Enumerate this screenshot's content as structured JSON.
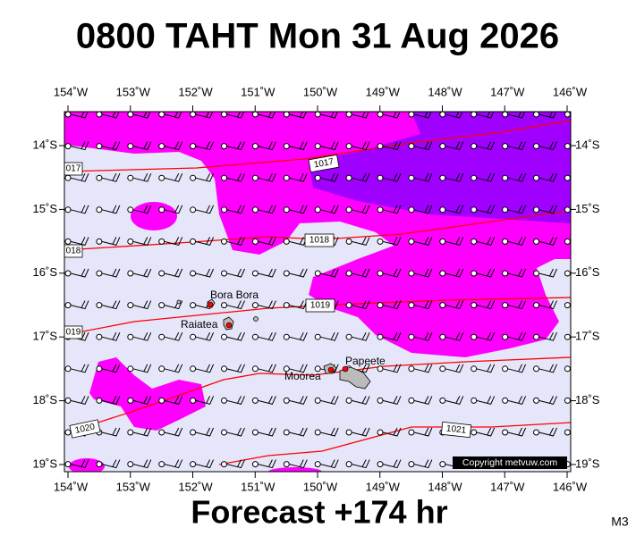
{
  "title": "0800 TAHT Mon 31 Aug 2026",
  "footer": "Forecast +174 hr",
  "model": "M3",
  "copyright": "Copyright metvuw.com",
  "longitude_labels": [
    "154˚W",
    "153˚W",
    "152˚W",
    "151˚W",
    "150˚W",
    "149˚W",
    "148˚W",
    "147˚W",
    "146˚W"
  ],
  "latitude_labels": [
    "14˚S",
    "15˚S",
    "16˚S",
    "17˚S",
    "18˚S",
    "19˚S"
  ],
  "isobar_labels": [
    "1017",
    "1018",
    "1019",
    "1020",
    "1021",
    "017",
    "018",
    "019"
  ],
  "places": [
    "Bora Bora",
    "Raiatea",
    "Moorea",
    "Papeete"
  ]
}
